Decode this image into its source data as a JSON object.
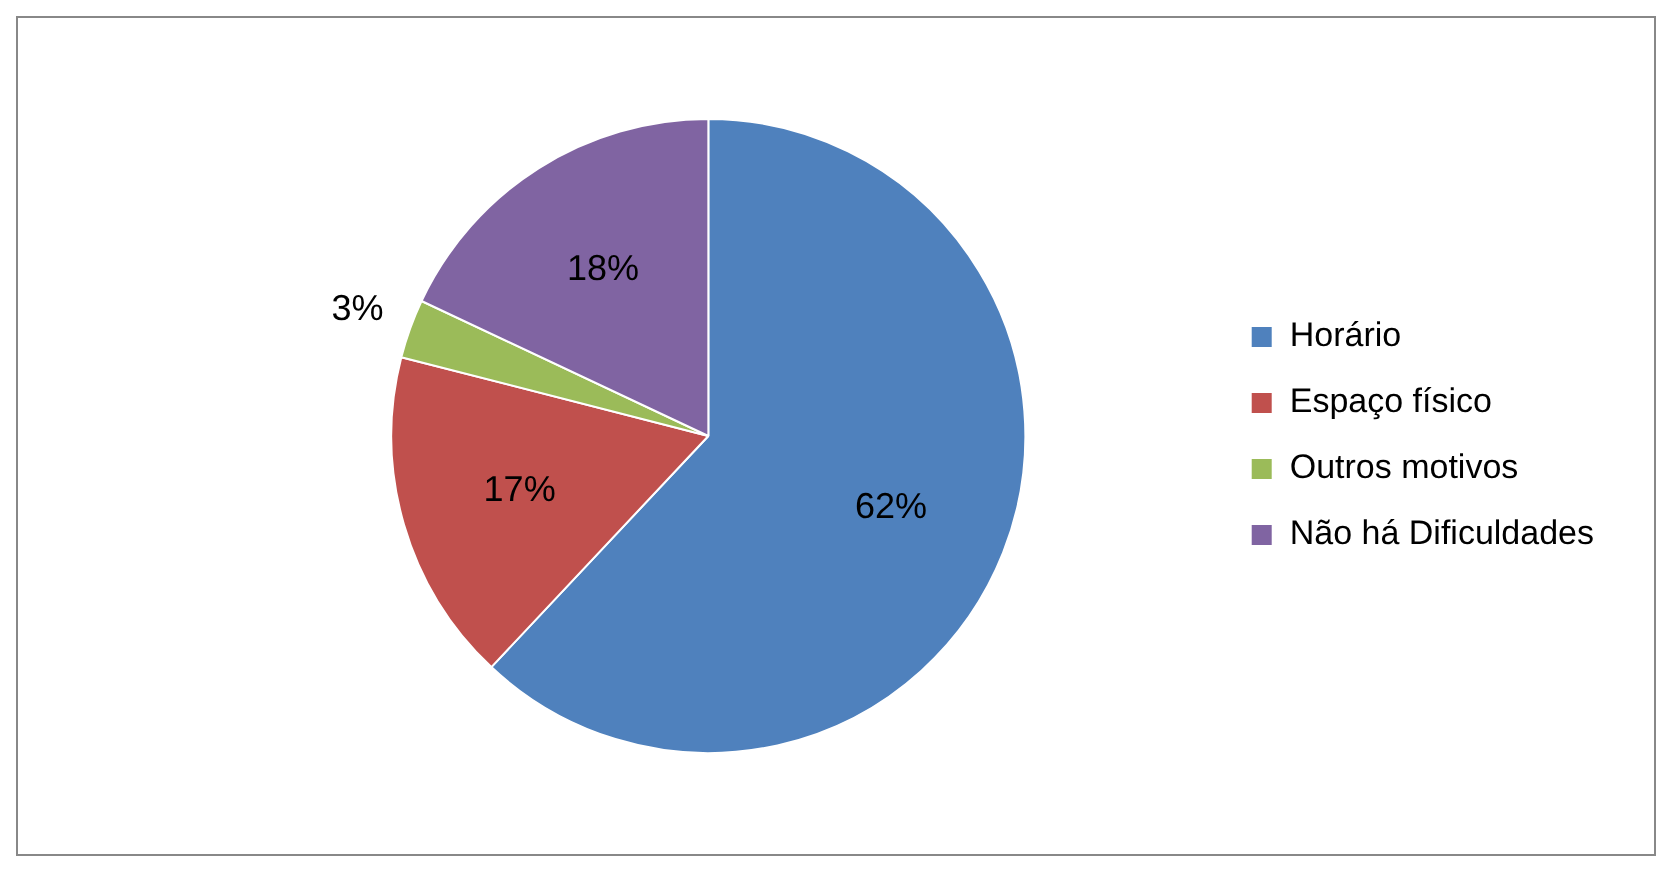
{
  "chart_data": {
    "type": "pie",
    "categories": [
      "Horário",
      "Espaço físico",
      "Outros motivos",
      "Não há Dificuldades"
    ],
    "values": [
      62,
      17,
      3,
      18
    ],
    "colors": [
      "#4f81bd",
      "#c0504d",
      "#9bbb59",
      "#8064a2"
    ],
    "value_labels": [
      "62%",
      "17%",
      "3%",
      "18%"
    ],
    "legend": "right"
  }
}
